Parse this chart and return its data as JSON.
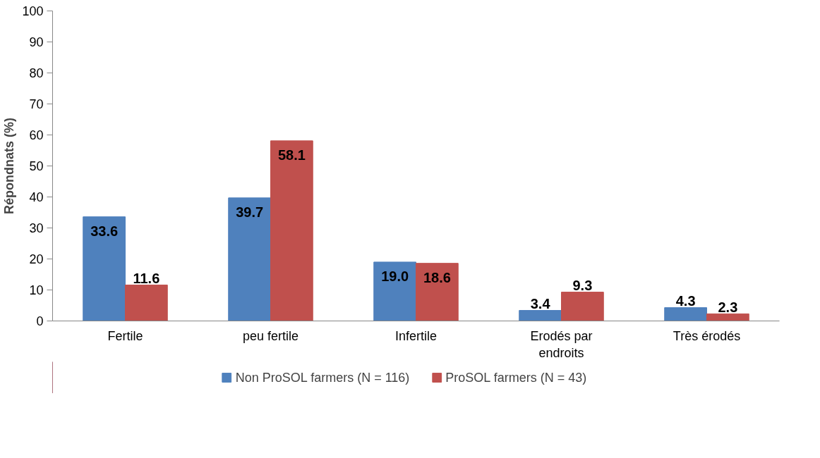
{
  "chart_data": {
    "type": "bar",
    "ylabel": "Répondnats (%)",
    "categories": [
      "Fertile",
      "peu fertile",
      "Infertile",
      "Erodés par endroits",
      "Très érodés"
    ],
    "series": [
      {
        "name": "Non ProSOL farmers (N = 116)",
        "color": "#4f81bd",
        "values": [
          33.6,
          39.7,
          19.0,
          3.4,
          4.3
        ],
        "value_labels": [
          "33.6",
          "39.7",
          "19.0",
          "3.4",
          "4.3"
        ]
      },
      {
        "name": "ProSOL farmers (N = 43)",
        "color": "#c0504d",
        "values": [
          11.6,
          58.1,
          18.6,
          9.3,
          2.3
        ],
        "value_labels": [
          "11.6",
          "58.1",
          "18.6",
          "9.3",
          "2.3"
        ]
      }
    ],
    "ylim": [
      0,
      100
    ],
    "yticks": [
      0,
      10,
      20,
      30,
      40,
      50,
      60,
      70,
      80,
      90,
      100
    ],
    "grid": false,
    "legend": "bottom"
  }
}
